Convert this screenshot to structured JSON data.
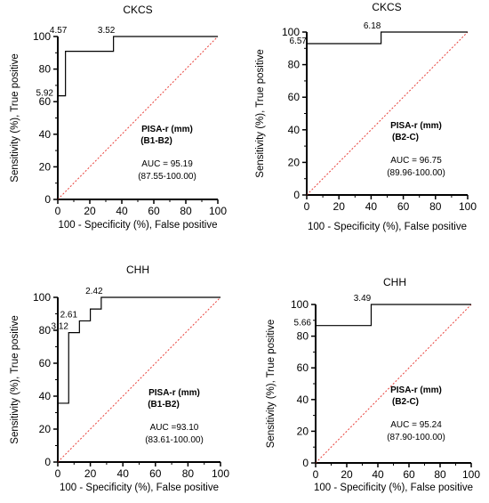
{
  "colors": {
    "roc": "#000000",
    "reference": "#e8413b",
    "axis": "#000000"
  },
  "chart_data": [
    {
      "type": "line",
      "title": "CKCS",
      "xlabel": "100 - Specificity (%), False positive",
      "ylabel": "Sensitivity (%), True positive",
      "xlim": [
        0,
        100
      ],
      "ylim": [
        0,
        100
      ],
      "xticks": [
        0,
        20,
        40,
        60,
        80,
        100
      ],
      "yticks": [
        0,
        20,
        40,
        60,
        80,
        100
      ],
      "series": [
        {
          "values_x": [
            0,
            0,
            4.8,
            4.8,
            34.8,
            34.8,
            100
          ],
          "values_y": [
            0,
            63.6,
            63.6,
            90.9,
            90.9,
            100,
            100
          ]
        },
        {
          "values_x": [
            0,
            100
          ],
          "values_y": [
            0,
            100
          ]
        }
      ],
      "point_labels": [
        {
          "text": "4.57",
          "x": 4.8,
          "y": 100
        },
        {
          "text": "3.52",
          "x": 34.8,
          "y": 100
        },
        {
          "text": "5.92",
          "x": 0,
          "y": 63.6
        }
      ],
      "annotation": {
        "line1": "PISA-r (mm)",
        "line2": "(B1-B2)",
        "line3": "AUC = 95.19",
        "line4": "(87.55-100.00)"
      }
    },
    {
      "type": "line",
      "title": "CKCS",
      "xlabel": "100 - Specificity (%), False positive",
      "ylabel": "Sensitivity (%), True positive",
      "xlim": [
        0,
        100
      ],
      "ylim": [
        0,
        100
      ],
      "xticks": [
        0,
        20,
        40,
        60,
        80,
        100
      ],
      "yticks": [
        0,
        20,
        40,
        60,
        80,
        100
      ],
      "series": [
        {
          "values_x": [
            0,
            0,
            46.2,
            46.2,
            100
          ],
          "values_y": [
            0,
            92.9,
            92.9,
            100,
            100
          ]
        },
        {
          "values_x": [
            0,
            100
          ],
          "values_y": [
            0,
            100
          ]
        }
      ],
      "point_labels": [
        {
          "text": "6.18",
          "x": 46.2,
          "y": 100
        },
        {
          "text": "6.57",
          "x": 0,
          "y": 92.9
        }
      ],
      "annotation": {
        "line1": "PISA-r (mm)",
        "line2": "(B2-C)",
        "line3": "AUC = 96.75",
        "line4": "(89.96-100.00)"
      }
    },
    {
      "type": "line",
      "title": "CHH",
      "xlabel": "100 - Specificity (%), False positive",
      "ylabel": "Sensitivity (%), True positive",
      "xlim": [
        0,
        100
      ],
      "ylim": [
        0,
        100
      ],
      "xticks": [
        0,
        20,
        40,
        60,
        80,
        100
      ],
      "yticks": [
        0,
        20,
        40,
        60,
        80,
        100
      ],
      "series": [
        {
          "values_x": [
            0,
            0,
            6.7,
            6.7,
            13.3,
            13.3,
            20,
            20,
            26.7,
            26.7,
            100
          ],
          "values_y": [
            0,
            35.7,
            35.7,
            78.6,
            78.6,
            85.7,
            85.7,
            92.9,
            92.9,
            100,
            100
          ]
        },
        {
          "values_x": [
            0,
            100
          ],
          "values_y": [
            0,
            100
          ]
        }
      ],
      "point_labels": [
        {
          "text": "2.42",
          "x": 26.7,
          "y": 100
        },
        {
          "text": "2.61",
          "x": 13.3,
          "y": 85.7
        },
        {
          "text": "3.12",
          "x": 6.7,
          "y": 78.6
        }
      ],
      "annotation": {
        "line1": "PISA-r (mm)",
        "line2": "(B1-B2)",
        "line3": "AUC =93.10",
        "line4": "(83.61-100.00)"
      }
    },
    {
      "type": "line",
      "title": "CHH",
      "xlabel": "100 - Specificity (%), False positive",
      "ylabel": "Sensitivity (%), True positive",
      "xlim": [
        0,
        100
      ],
      "ylim": [
        0,
        100
      ],
      "xticks": [
        0,
        20,
        40,
        60,
        80,
        100
      ],
      "yticks": [
        0,
        20,
        40,
        60,
        80,
        100
      ],
      "series": [
        {
          "values_x": [
            0,
            0,
            35.7,
            35.7,
            100
          ],
          "values_y": [
            0,
            86.7,
            86.7,
            100,
            100
          ]
        },
        {
          "values_x": [
            0,
            100
          ],
          "values_y": [
            0,
            100
          ]
        }
      ],
      "point_labels": [
        {
          "text": "3.49",
          "x": 35.7,
          "y": 100
        },
        {
          "text": "5.66",
          "x": 0,
          "y": 86.7
        }
      ],
      "annotation": {
        "line1": "PISA-r (mm)",
        "line2": "(B2-C)",
        "line3": "AUC = 95.24",
        "line4": "(87.90-100.00)"
      }
    }
  ]
}
